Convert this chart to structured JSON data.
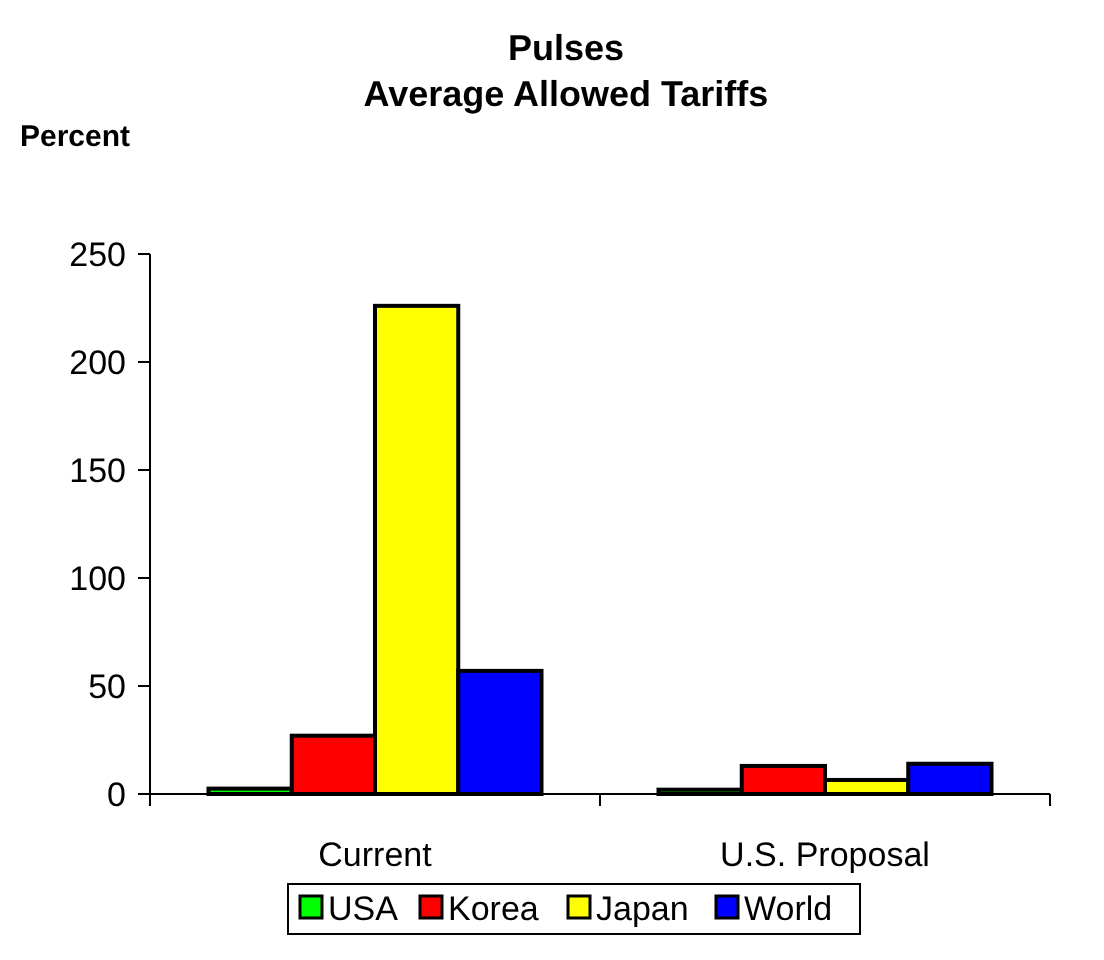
{
  "chart_data": {
    "type": "bar",
    "title": "Pulses\nAverage Allowed Tariffs",
    "ylabel": "Percent",
    "categories": [
      "Current",
      "U.S. Proposal"
    ],
    "series": [
      {
        "name": "USA",
        "color": "#00ff00",
        "values": [
          2.5,
          2
        ]
      },
      {
        "name": "Korea",
        "color": "#ff0000",
        "values": [
          27,
          13
        ]
      },
      {
        "name": "Japan",
        "color": "#ffff00",
        "values": [
          226,
          6.5
        ]
      },
      {
        "name": "World",
        "color": "#0000ff",
        "values": [
          57,
          14
        ]
      }
    ],
    "ylim": [
      0,
      250
    ],
    "yticks": [
      0,
      50,
      100,
      150,
      200,
      250
    ],
    "legend": "bottom"
  }
}
